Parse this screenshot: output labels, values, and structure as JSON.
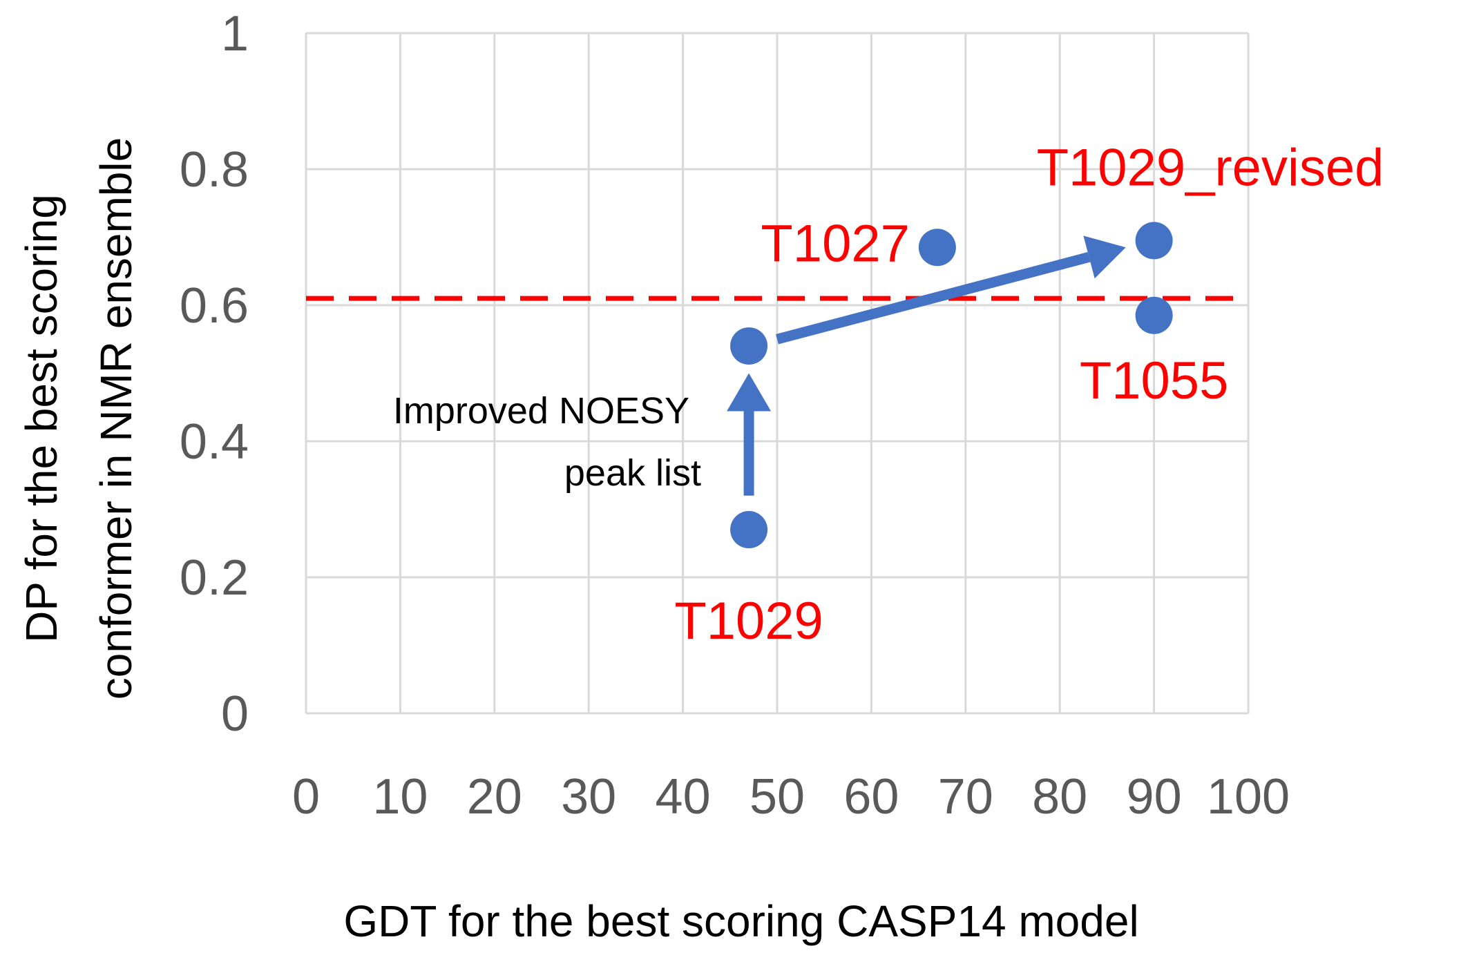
{
  "chart_data": {
    "type": "scatter",
    "title": "",
    "xlabel": "GDT for the best scoring CASP14 model",
    "ylabel_lines": [
      "DP for the best scoring",
      "conformer in NMR ensemble"
    ],
    "xlim": [
      0,
      100
    ],
    "ylim": [
      0,
      1
    ],
    "x_ticks": [
      "0",
      "10",
      "20",
      "30",
      "40",
      "50",
      "60",
      "70",
      "80",
      "90",
      "100"
    ],
    "y_ticks": [
      "0",
      "0.2",
      "0.4",
      "0.6",
      "0.8",
      "1"
    ],
    "grid": true,
    "threshold_line": {
      "y": 0.61,
      "color": "#ff0000",
      "style": "dashed"
    },
    "point_color": "#4472c4",
    "label_color": "#ff0000",
    "points": [
      {
        "label": "T1029",
        "x": 47,
        "y": 0.27
      },
      {
        "label": "",
        "x": 47,
        "y": 0.54
      },
      {
        "label": "T1027",
        "x": 67,
        "y": 0.685
      },
      {
        "label": "T1029_revised",
        "x": 90,
        "y": 0.695
      },
      {
        "label": "T1055",
        "x": 90,
        "y": 0.585
      }
    ],
    "arrows": [
      {
        "from": [
          47,
          0.32
        ],
        "to": [
          47,
          0.5
        ]
      },
      {
        "from": [
          50,
          0.55
        ],
        "to": [
          87,
          0.685
        ]
      }
    ],
    "annotation": [
      "Improved NOESY",
      "peak list"
    ]
  }
}
